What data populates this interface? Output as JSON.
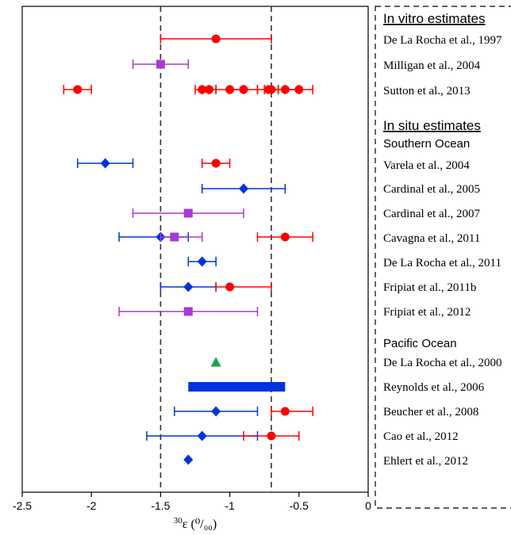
{
  "chart_data": {
    "type": "scatter",
    "xlabel": "ε (⁰/₀₀)",
    "xlabel_superscript": "30",
    "xlim": [
      -2.5,
      0
    ],
    "xticks": [
      -2.5,
      -2,
      -1.5,
      -1,
      -0.5,
      0
    ],
    "xtick_labels": [
      "-2.5",
      "-2",
      "-1.5",
      "-1",
      "-0.5",
      "0"
    ],
    "reference_lines": [
      -1.5,
      -0.7
    ],
    "colors": {
      "red": "#ff0000",
      "purple": "#a63ad6",
      "blue": "#0033dd",
      "green": "#17a34a"
    },
    "headings": [
      {
        "key": "invitro",
        "text": "In vitro estimates"
      },
      {
        "key": "insitu",
        "text": "In situ estimates"
      }
    ],
    "regions": [
      {
        "key": "southern",
        "text": "Southern Ocean"
      },
      {
        "key": "pacific",
        "text": "Pacific Ocean"
      }
    ],
    "studies": [
      {
        "label": "De La Rocha et al., 1997",
        "points": [
          {
            "x": -1.1,
            "xmin": -1.5,
            "xmax": -0.7,
            "color": "red",
            "marker": "circle"
          }
        ]
      },
      {
        "label": "Milligan et al., 2004",
        "points": [
          {
            "x": -1.5,
            "xmin": -1.7,
            "xmax": -1.3,
            "color": "purple",
            "marker": "square"
          }
        ]
      },
      {
        "label": "Sutton et al., 2013",
        "points": [
          {
            "x": -2.1,
            "xmin": -2.2,
            "xmax": -2.0,
            "color": "red",
            "marker": "circle"
          },
          {
            "x": -1.2,
            "xmin": -1.25,
            "xmax": -1.15,
            "color": "red",
            "marker": "circle"
          },
          {
            "x": -1.15,
            "xmin": -1.2,
            "xmax": -1.1,
            "color": "red",
            "marker": "circle"
          },
          {
            "x": -1.0,
            "xmin": -1.1,
            "xmax": -0.9,
            "color": "red",
            "marker": "circle"
          },
          {
            "x": -0.9,
            "xmin": -1.0,
            "xmax": -0.8,
            "color": "red",
            "marker": "circle"
          },
          {
            "x": -0.72,
            "xmin": -0.8,
            "xmax": -0.65,
            "color": "red",
            "marker": "circle"
          },
          {
            "x": -0.7,
            "xmin": -0.75,
            "xmax": -0.65,
            "color": "red",
            "marker": "circle"
          },
          {
            "x": -0.6,
            "xmin": -0.7,
            "xmax": -0.5,
            "color": "red",
            "marker": "circle"
          },
          {
            "x": -0.5,
            "xmin": -0.6,
            "xmax": -0.4,
            "color": "red",
            "marker": "circle"
          }
        ]
      },
      {
        "label": "Varela et al., 2004",
        "points": [
          {
            "x": -1.9,
            "xmin": -2.1,
            "xmax": -1.7,
            "color": "blue",
            "marker": "diamond"
          },
          {
            "x": -1.1,
            "xmin": -1.2,
            "xmax": -1.0,
            "color": "red",
            "marker": "circle"
          }
        ]
      },
      {
        "label": "Cardinal et al., 2005",
        "points": [
          {
            "x": -0.9,
            "xmin": -1.2,
            "xmax": -0.6,
            "color": "blue",
            "marker": "diamond"
          }
        ]
      },
      {
        "label": "Cardinal et al., 2007",
        "points": [
          {
            "x": -1.3,
            "xmin": -1.7,
            "xmax": -0.9,
            "color": "purple",
            "marker": "square"
          }
        ]
      },
      {
        "label": "Cavagna et al., 2011",
        "points": [
          {
            "x": -1.5,
            "xmin": -1.8,
            "xmax": -1.3,
            "color": "blue",
            "marker": "diamond"
          },
          {
            "x": -1.4,
            "xmin": -1.5,
            "xmax": -1.2,
            "color": "purple",
            "marker": "square"
          },
          {
            "x": -0.6,
            "xmin": -0.8,
            "xmax": -0.4,
            "color": "red",
            "marker": "circle"
          }
        ]
      },
      {
        "label": "De La Rocha et al., 2011",
        "points": [
          {
            "x": -1.2,
            "xmin": -1.3,
            "xmax": -1.1,
            "color": "blue",
            "marker": "diamond"
          }
        ]
      },
      {
        "label": "Fripiat et al., 2011b",
        "points": [
          {
            "x": -1.3,
            "xmin": -1.5,
            "xmax": -1.1,
            "color": "blue",
            "marker": "diamond"
          },
          {
            "x": -1.0,
            "xmin": -1.1,
            "xmax": -0.7,
            "color": "red",
            "marker": "circle"
          }
        ]
      },
      {
        "label": "Fripiat et al., 2012",
        "points": [
          {
            "x": -1.3,
            "xmin": -1.8,
            "xmax": -0.8,
            "color": "purple",
            "marker": "square"
          }
        ]
      },
      {
        "label": "De La Rocha et al., 2000",
        "points": [
          {
            "x": -1.1,
            "color": "green",
            "marker": "triangle"
          }
        ]
      },
      {
        "label": "Reynolds et al., 2006",
        "points": [
          {
            "xmin": -1.3,
            "xmax": -0.6,
            "color": "blue",
            "marker": "bar"
          }
        ]
      },
      {
        "label": "Beucher et al., 2008",
        "points": [
          {
            "x": -1.1,
            "xmin": -1.4,
            "xmax": -0.8,
            "color": "blue",
            "marker": "diamond"
          },
          {
            "x": -0.6,
            "xmin": -0.7,
            "xmax": -0.4,
            "color": "red",
            "marker": "circle"
          }
        ]
      },
      {
        "label": "Cao et al., 2012",
        "points": [
          {
            "x": -1.2,
            "xmin": -1.6,
            "xmax": -0.8,
            "color": "blue",
            "marker": "diamond"
          },
          {
            "x": -0.7,
            "xmin": -0.9,
            "xmax": -0.5,
            "color": "red",
            "marker": "circle"
          }
        ]
      },
      {
        "label": "Ehlert et al., 2012",
        "points": [
          {
            "x": -1.3,
            "color": "blue",
            "marker": "diamond"
          }
        ]
      }
    ]
  }
}
